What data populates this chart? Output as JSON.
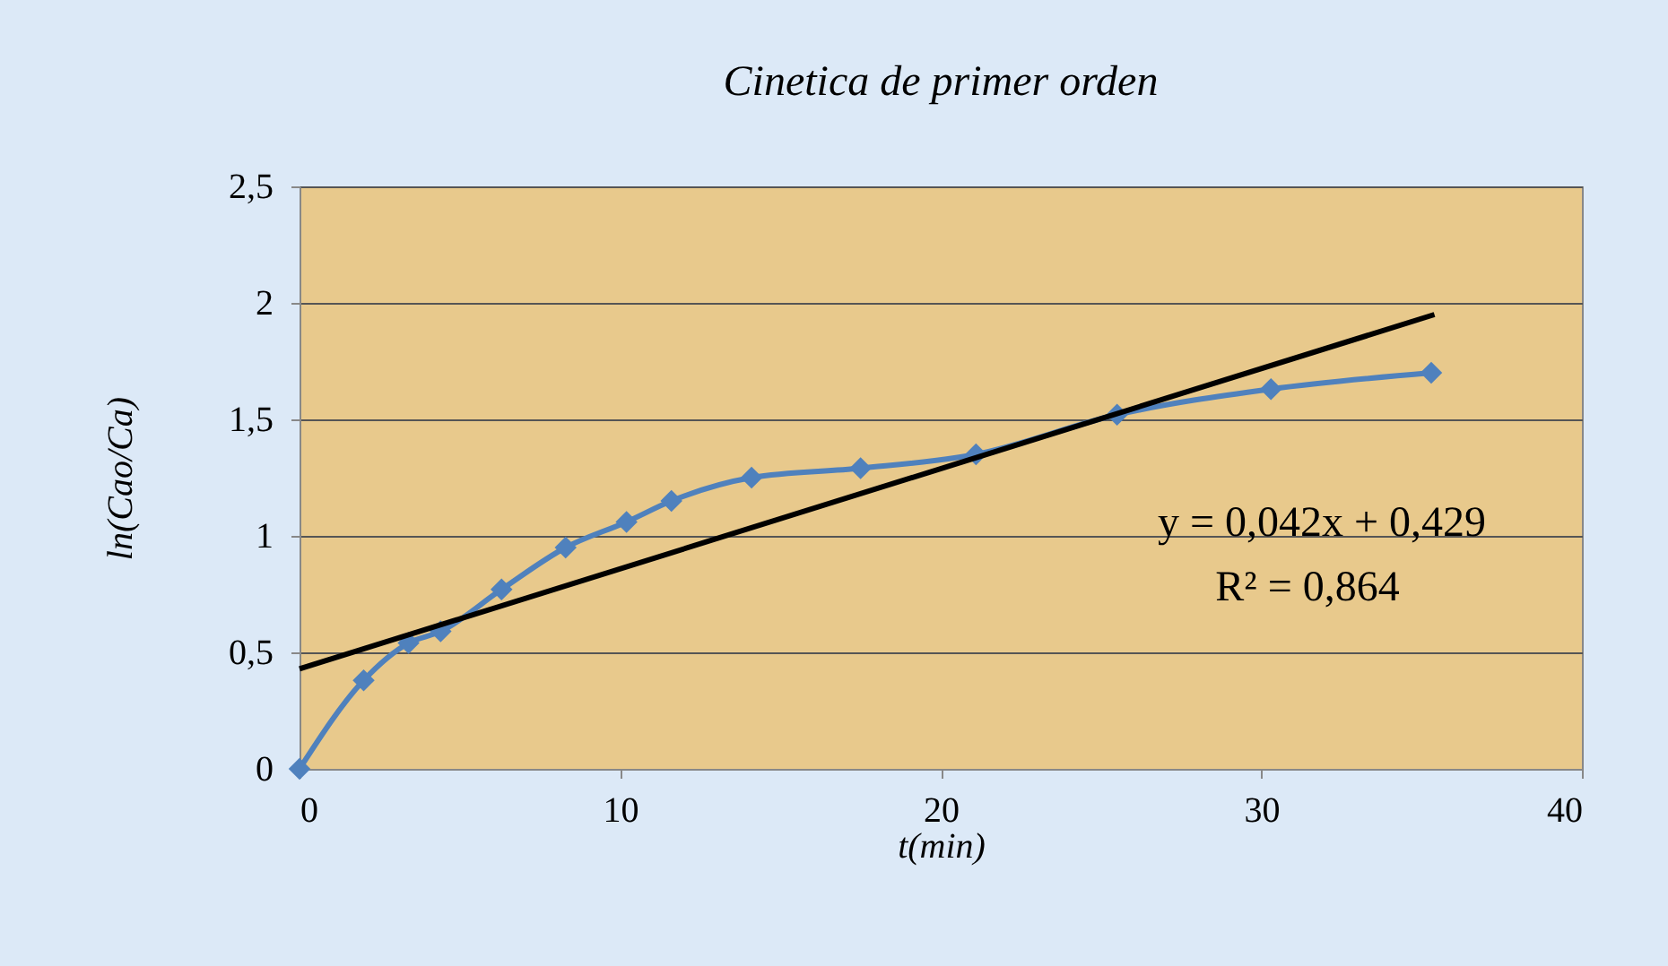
{
  "chart_data": {
    "type": "line",
    "title": "Cinetica de primer orden",
    "xlabel": "t(min)",
    "ylabel": "ln(Cao/Ca)",
    "xlim": [
      0,
      40
    ],
    "xticks": [
      0,
      10,
      20,
      30,
      40
    ],
    "ylim": [
      0,
      2.5
    ],
    "yticks": [
      0,
      {
        "value": 0.5,
        "label": "0,5"
      },
      1,
      {
        "value": 1.5,
        "label": "1,5"
      },
      2,
      {
        "value": 2.5,
        "label": "2,5"
      }
    ],
    "grid": "y",
    "series": [
      {
        "color": "#4f81bd",
        "marker": "diamond",
        "x": [
          0,
          2.0,
          3.4,
          4.4,
          6.3,
          8.3,
          10.2,
          11.6,
          14.1,
          17.5,
          21.1,
          25.5,
          30.3,
          35.3
        ],
        "values": [
          0,
          0.38,
          0.54,
          0.59,
          0.77,
          0.95,
          1.06,
          1.15,
          1.25,
          1.29,
          1.35,
          1.52,
          1.63,
          1.7
        ]
      },
      {
        "color": "#000000",
        "marker": "none",
        "x": [
          0,
          35.4
        ],
        "values": [
          0.429,
          1.95
        ]
      }
    ],
    "annotations": [
      "y = 0,042x + 0,429",
      "R² = 0,864"
    ]
  }
}
